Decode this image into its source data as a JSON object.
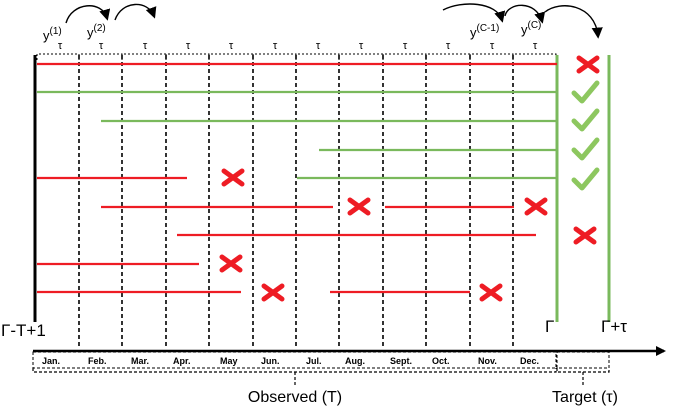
{
  "months": [
    "Jan.",
    "Feb.",
    "Mar.",
    "Apr.",
    "May",
    "Jun.",
    "Jul.",
    "Aug.",
    "Sept.",
    "Oct.",
    "Nov.",
    "Dec."
  ],
  "tau_symbol": "τ",
  "y_labels": [
    {
      "base": "y",
      "sup": "(1)"
    },
    {
      "base": "y",
      "sup": "(2)"
    },
    {
      "base": "y",
      "sup": "(C-1)"
    },
    {
      "base": "y",
      "sup": "(C)"
    }
  ],
  "left_axis_label": "Γ-T+1",
  "gamma_label": "Γ",
  "gamma_tau_label": "Γ+τ",
  "observed_label": "Observed (T)",
  "target_label": "Target (τ)",
  "colors": {
    "red": "#ee1c24",
    "green": "#7ab95c",
    "check": "#8dc75f",
    "black": "#000000"
  },
  "icons": {
    "fail": "red-x-icon",
    "success": "green-check-icon"
  },
  "outcome_column": [
    "fail",
    "success",
    "success",
    "success",
    "success",
    "fail"
  ]
}
